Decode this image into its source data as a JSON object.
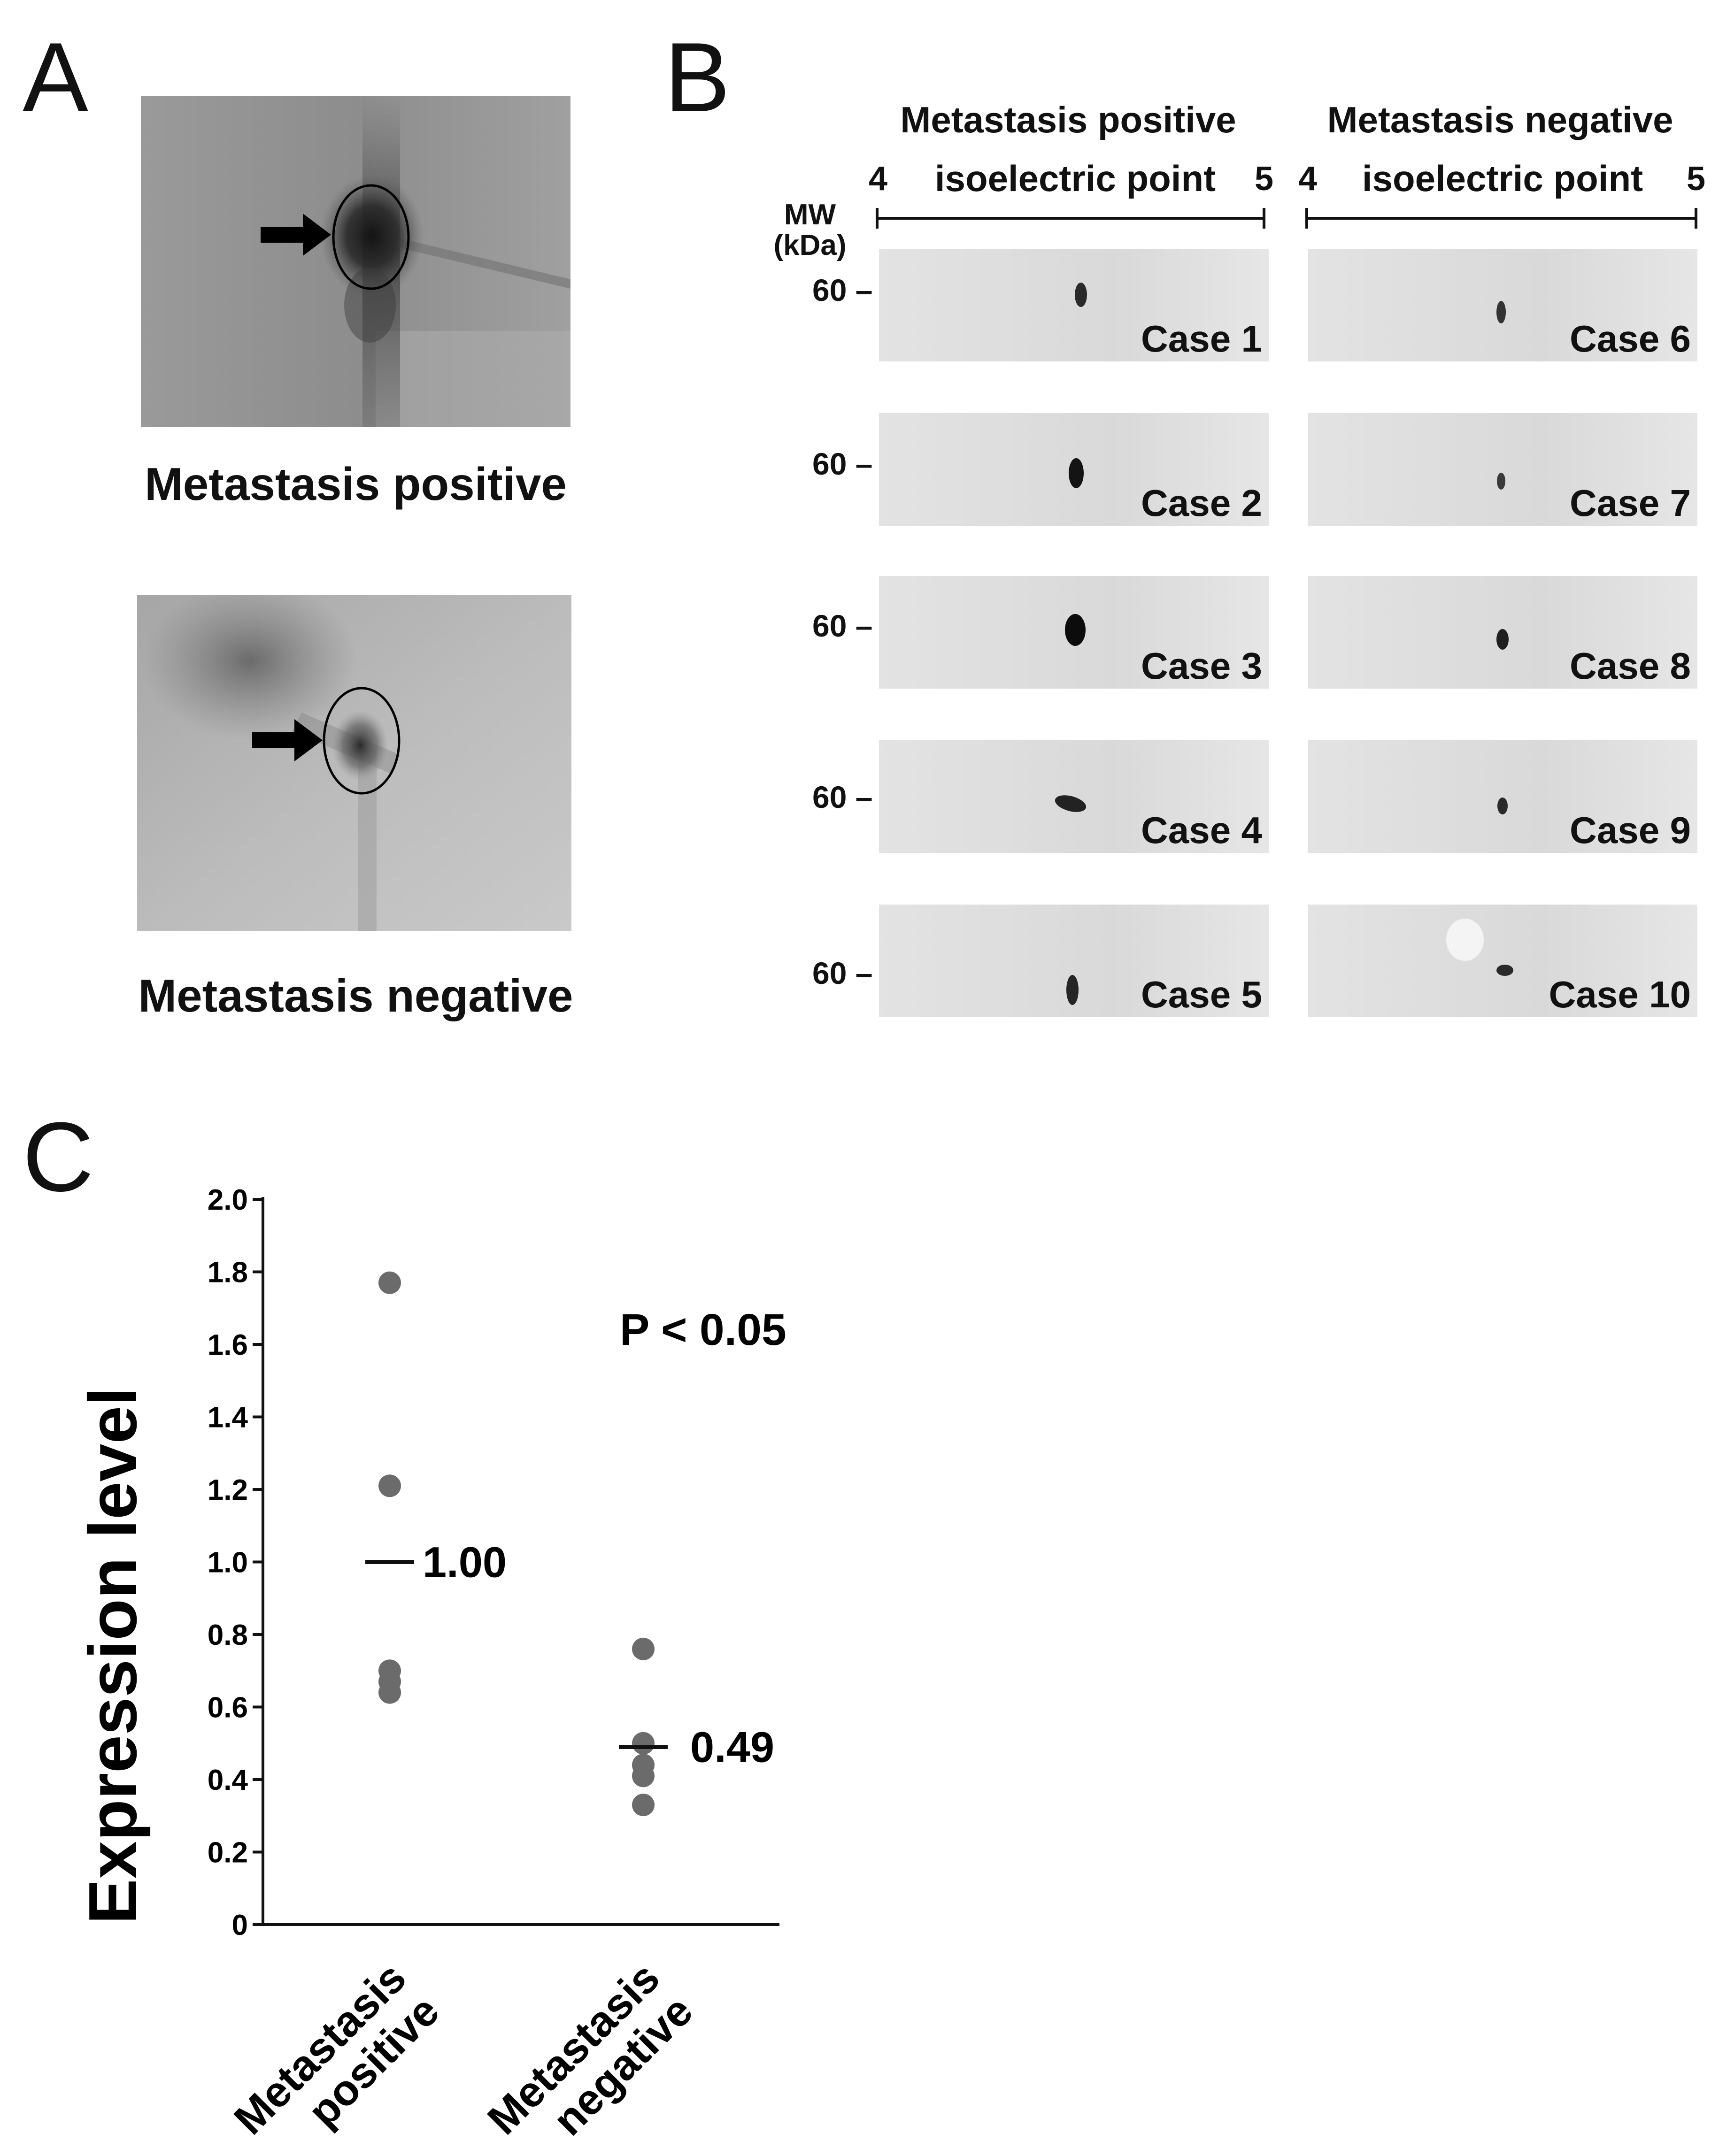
{
  "panel_a": {
    "letter": "A",
    "top_caption": "Metastasis positive",
    "bottom_caption": "Metastasis negative"
  },
  "panel_b": {
    "letter": "B",
    "left_header": "Metastasis positive",
    "right_header": "Metastasis negative",
    "iep_label": "isoelectric point",
    "iep_min": "4",
    "iep_max": "5",
    "mw_label": "MW (kDa)",
    "mw_tick": "60",
    "cases": [
      "Case 1",
      "Case 2",
      "Case 3",
      "Case 4",
      "Case 5",
      "Case 6",
      "Case 7",
      "Case 8",
      "Case 9",
      "Case 10"
    ]
  },
  "panel_c": {
    "letter": "C",
    "p_value": "P < 0.05"
  },
  "chart_data": {
    "type": "scatter",
    "title": "",
    "ylabel": "Expression level",
    "xlabel": "",
    "categories": [
      "Metastasis positive",
      "Metastasis negative"
    ],
    "ylim": [
      0,
      2.0
    ],
    "yticks": [
      "0",
      "0.2",
      "0.4",
      "0.6",
      "0.8",
      "1.0",
      "1.2",
      "1.4",
      "1.6",
      "1.8",
      "2.0"
    ],
    "series": [
      {
        "name": "Metastasis positive",
        "values": [
          1.77,
          1.21,
          0.7,
          0.67,
          0.64
        ]
      },
      {
        "name": "Metastasis negative",
        "values": [
          0.76,
          0.5,
          0.44,
          0.41,
          0.33
        ]
      }
    ],
    "means": [
      1.0,
      0.49
    ],
    "mean_labels": [
      "1.00",
      "0.49"
    ],
    "point_color": "#6b6b6b"
  }
}
